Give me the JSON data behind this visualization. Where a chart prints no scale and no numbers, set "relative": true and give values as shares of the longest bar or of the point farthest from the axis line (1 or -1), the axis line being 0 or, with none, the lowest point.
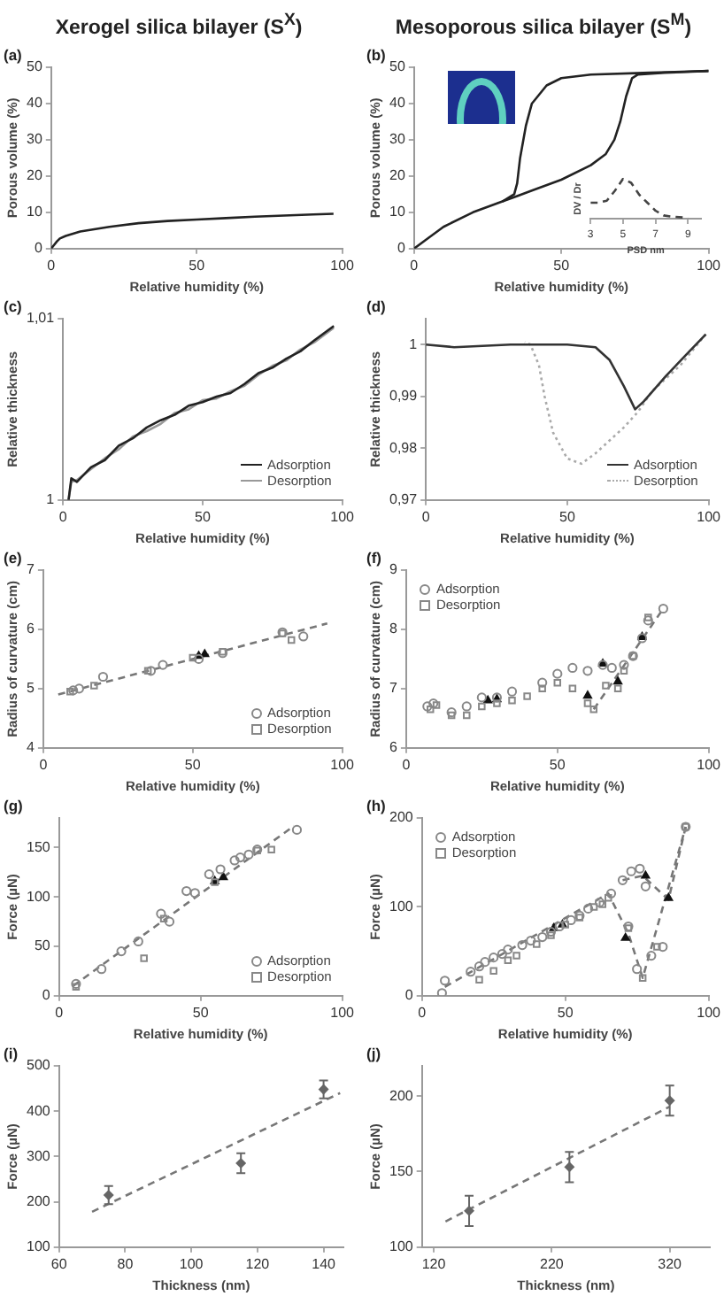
{
  "chart_data": [
    {
      "type": "line",
      "title": "Xerogel silica bilayer (S$^{X}$)",
      "annotations": [
        "(a)"
      ],
      "xlabel": "Relative humidity (%)",
      "ylabel": "Porous volume (%)",
      "xlim": [
        0,
        100
      ],
      "xticks": [
        0,
        50,
        100
      ],
      "ylim": [
        0,
        50
      ],
      "yticks": [
        0,
        10,
        20,
        30,
        40,
        50
      ],
      "series": [
        {
          "color": "#222222",
          "x": [
            0,
            1,
            2,
            3,
            5,
            10,
            20,
            30,
            40,
            50,
            60,
            70,
            80,
            90,
            97
          ],
          "values": [
            0,
            1,
            2,
            2.8,
            3.5,
            4.7,
            6,
            7,
            7.6,
            8,
            8.4,
            8.8,
            9.1,
            9.4,
            9.6
          ]
        }
      ]
    },
    {
      "type": "line",
      "title": "Mesoporous silica bilayer (S$^{M}$)",
      "annotations": [
        "(b)"
      ],
      "xlabel": "Relative humidity (%)",
      "ylabel": "Porous volume (%)",
      "xlim": [
        0,
        100
      ],
      "xticks": [
        0,
        50,
        100
      ],
      "ylim": [
        0,
        50
      ],
      "yticks": [
        0,
        10,
        20,
        30,
        40,
        50
      ],
      "series": [
        {
          "color": "#222222",
          "x": [
            0,
            5,
            10,
            20,
            30,
            35,
            40,
            50,
            60,
            65,
            68,
            70,
            72,
            74,
            76,
            85,
            100
          ],
          "values": [
            0,
            3,
            6,
            10,
            13,
            14.5,
            16,
            19,
            23,
            26,
            30,
            35,
            42,
            47,
            48,
            48.5,
            49
          ]
        },
        {
          "color": "#222222",
          "x": [
            100,
            80,
            60,
            50,
            45,
            40,
            38,
            36,
            35,
            34,
            30
          ],
          "values": [
            49,
            48.5,
            48,
            47,
            45,
            40,
            34,
            25,
            18,
            15,
            13
          ]
        }
      ]
    },
    {
      "type": "line",
      "relative": true,
      "tick_labels": "x",
      "xlabel": "PSD nm",
      "ylabel": "DV / Dr",
      "xlim": [
        3,
        9.8
      ],
      "xticks": [
        3,
        5,
        7,
        9
      ],
      "series": [
        {
          "color": "#444444",
          "line_style": "dashed",
          "x": [
            3,
            3.5,
            4,
            4.5,
            5,
            5.5,
            6,
            6.5,
            7,
            7.5,
            8,
            9
          ],
          "values": [
            0.4,
            0.4,
            0.45,
            0.7,
            1,
            0.9,
            0.6,
            0.4,
            0.2,
            0.08,
            0.05,
            0.02
          ]
        }
      ]
    },
    {
      "type": "line",
      "annotations": [
        "(c)"
      ],
      "xlabel": "Relative humidity (%)",
      "ylabel": "Relative thickness",
      "xlim": [
        0,
        100
      ],
      "xticks": [
        0,
        50,
        100
      ],
      "ylim": [
        1,
        1.01
      ],
      "yticks": [
        1,
        {
          "value": 1.01,
          "label": "1,01"
        }
      ],
      "legend": "bottom right",
      "series": [
        {
          "name": "Adsorption",
          "color": "#222222",
          "x": [
            2,
            3,
            5,
            10,
            15,
            20,
            25,
            30,
            35,
            40,
            45,
            50,
            55,
            60,
            65,
            70,
            75,
            80,
            85,
            90,
            97
          ],
          "values": [
            1,
            1.0012,
            1.001,
            1.0018,
            1.0022,
            1.003,
            1.0034,
            1.004,
            1.0044,
            1.0047,
            1.0052,
            1.0054,
            1.0057,
            1.0059,
            1.0064,
            1.007,
            1.0073,
            1.0078,
            1.0082,
            1.0088,
            1.0096
          ]
        },
        {
          "name": "Desorption",
          "color": "#999999",
          "x": [
            2,
            3,
            5,
            10,
            15,
            20,
            25,
            30,
            35,
            40,
            45,
            50,
            55,
            60,
            65,
            70,
            75,
            80,
            85,
            90,
            97
          ],
          "values": [
            1,
            1.001,
            1.0011,
            1.0017,
            1.0023,
            1.0028,
            1.0035,
            1.0038,
            1.0042,
            1.0048,
            1.005,
            1.0055,
            1.0056,
            1.006,
            1.0063,
            1.0069,
            1.0074,
            1.0077,
            1.0083,
            1.0087,
            1.0095
          ]
        }
      ]
    },
    {
      "type": "line",
      "annotations": [
        "(d)"
      ],
      "xlabel": "Relative humidity (%)",
      "ylabel": "Relative thickness",
      "xlim": [
        0,
        100
      ],
      "xticks": [
        0,
        50,
        100
      ],
      "ylim": [
        0.97,
        1.005
      ],
      "yticks": [
        {
          "value": 0.97,
          "label": "0,97"
        },
        {
          "value": 0.98,
          "label": "0,98"
        },
        {
          "value": 0.99,
          "label": "0,99"
        },
        1
      ],
      "legend": "bottom right",
      "series": [
        {
          "name": "Adsorption",
          "color": "#333333",
          "x": [
            0,
            10,
            30,
            50,
            60,
            65,
            70,
            74,
            77,
            85,
            92,
            99
          ],
          "values": [
            1,
            0.9995,
            1,
            1,
            0.9995,
            0.997,
            0.992,
            0.9875,
            0.989,
            0.994,
            0.998,
            1.002
          ]
        },
        {
          "name": "Desorption",
          "color": "#aaaaaa",
          "line_style": "dotted",
          "x": [
            99,
            90,
            80,
            75,
            70,
            60,
            55,
            50,
            45,
            42,
            40,
            37,
            35
          ],
          "values": [
            1.002,
            0.996,
            0.991,
            0.987,
            0.984,
            0.979,
            0.977,
            0.978,
            0.983,
            0.99,
            0.996,
            1,
            1.0005
          ]
        }
      ]
    },
    {
      "type": "scatter",
      "annotations": [
        "(e)"
      ],
      "xlabel": "Relative humidity (%)",
      "ylabel": "Radius of curvature (cm)",
      "xlim": [
        0,
        100
      ],
      "xticks": [
        0,
        50,
        100
      ],
      "ylim": [
        4,
        7
      ],
      "yticks": [
        4,
        5,
        6,
        7
      ],
      "legend": "bottom right",
      "series": [
        {
          "name": "Adsorption",
          "color": "#888888",
          "marker": "circle",
          "x": [
            10,
            12,
            20,
            36,
            40,
            52,
            60,
            80,
            87
          ],
          "values": [
            4.97,
            5,
            5.2,
            5.3,
            5.4,
            5.5,
            5.6,
            5.95,
            5.88
          ]
        },
        {
          "name": "Desorption",
          "color": "#888888",
          "marker": "square",
          "x": [
            9,
            17,
            35,
            50,
            60,
            80,
            83
          ],
          "values": [
            4.95,
            5.05,
            5.3,
            5.52,
            5.62,
            5.93,
            5.82
          ]
        },
        {
          "type": "scatter",
          "color": "#111111",
          "marker": "triangle",
          "x": [
            52,
            54
          ],
          "values": [
            5.55,
            5.58
          ]
        },
        {
          "type": "line",
          "color": "#777777",
          "line_style": "dashed",
          "x": [
            5,
            95
          ],
          "values": [
            4.9,
            6.1
          ]
        }
      ]
    },
    {
      "type": "scatter",
      "annotations": [
        "(f)"
      ],
      "xlabel": "Relative humidity (%)",
      "ylabel": "Radius of curvature (cm)",
      "xlim": [
        0,
        100
      ],
      "xticks": [
        0,
        50,
        100
      ],
      "ylim": [
        6,
        9
      ],
      "yticks": [
        6,
        7,
        8,
        9
      ],
      "legend": "top left",
      "series": [
        {
          "name": "Adsorption",
          "color": "#888888",
          "marker": "circle",
          "x": [
            7,
            9,
            15,
            20,
            25,
            30,
            35,
            45,
            50,
            55,
            60,
            65,
            68,
            72,
            75,
            78,
            80,
            85
          ],
          "values": [
            6.7,
            6.75,
            6.6,
            6.7,
            6.85,
            6.85,
            6.95,
            7.1,
            7.25,
            7.35,
            7.3,
            7.4,
            7.35,
            7.4,
            7.55,
            7.85,
            8.15,
            8.35
          ]
        },
        {
          "name": "Desorption",
          "color": "#888888",
          "marker": "square",
          "x": [
            8,
            10,
            15,
            20,
            25,
            30,
            35,
            40,
            45,
            50,
            55,
            60,
            62,
            66,
            70,
            72,
            75,
            80
          ],
          "values": [
            6.65,
            6.72,
            6.55,
            6.55,
            6.7,
            6.75,
            6.8,
            6.87,
            7,
            7.1,
            7,
            6.75,
            6.65,
            7.05,
            7,
            7.3,
            7.55,
            8.2
          ]
        },
        {
          "type": "scatter",
          "color": "#111111",
          "marker": "triangle",
          "x": [
            27,
            30,
            60,
            65,
            70,
            78
          ],
          "values": [
            6.8,
            6.82,
            6.88,
            7.42,
            7.12,
            7.87
          ]
        },
        {
          "type": "line",
          "color": "#777777",
          "line_style": "dashed",
          "x": [
            62,
            85
          ],
          "values": [
            6.65,
            8.35
          ]
        }
      ]
    },
    {
      "type": "scatter",
      "annotations": [
        "(g)"
      ],
      "xlabel": "Relative humidity (%)",
      "ylabel": "Force (µN)",
      "xlim": [
        0,
        100
      ],
      "xticks": [
        0,
        50,
        100
      ],
      "ylim": [
        0,
        180
      ],
      "yticks": [
        0,
        50,
        100,
        150
      ],
      "legend": "bottom right",
      "series": [
        {
          "name": "Adsorption",
          "color": "#888888",
          "marker": "circle",
          "x": [
            6,
            15,
            22,
            28,
            36,
            39,
            45,
            48,
            53,
            57,
            62,
            64,
            67,
            70,
            84
          ],
          "values": [
            12,
            27,
            45,
            55,
            83,
            75,
            106,
            104,
            123,
            128,
            137,
            140,
            143,
            148,
            168
          ]
        },
        {
          "name": "Desorption",
          "color": "#888888",
          "marker": "square",
          "x": [
            6,
            30,
            37,
            55,
            70,
            75
          ],
          "values": [
            9,
            38,
            78,
            115,
            147,
            148
          ]
        },
        {
          "type": "scatter",
          "color": "#111111",
          "marker": "triangle",
          "x": [
            55,
            58
          ],
          "values": [
            116,
            120
          ]
        },
        {
          "type": "line",
          "color": "#777777",
          "line_style": "dashed",
          "x": [
            5,
            83
          ],
          "values": [
            10,
            172
          ]
        }
      ]
    },
    {
      "type": "scatter",
      "annotations": [
        "(h)"
      ],
      "xlabel": "Relative humidity (%)",
      "ylabel": "Force (µN)",
      "xlim": [
        0,
        100
      ],
      "xticks": [
        0,
        50,
        100
      ],
      "ylim": [
        0,
        200
      ],
      "yticks": [
        0,
        100,
        200
      ],
      "legend": "top left",
      "series": [
        {
          "name": "Adsorption",
          "color": "#888888",
          "marker": "circle",
          "x": [
            7,
            8,
            17,
            20,
            22,
            25,
            28,
            30,
            35,
            38,
            42,
            45,
            48,
            52,
            55,
            58,
            62,
            66,
            70,
            73,
            76,
            78,
            72,
            75,
            80,
            84,
            92
          ],
          "values": [
            3,
            17,
            27,
            33,
            38,
            43,
            47,
            52,
            57,
            62,
            66,
            72,
            78,
            85,
            90,
            98,
            105,
            115,
            130,
            140,
            143,
            123,
            78,
            30,
            45,
            55,
            190
          ]
        },
        {
          "name": "Desorption",
          "color": "#888888",
          "marker": "square",
          "x": [
            20,
            25,
            30,
            33,
            40,
            45,
            50,
            55,
            60,
            63,
            65,
            72,
            77,
            82,
            92
          ],
          "values": [
            18,
            28,
            40,
            45,
            58,
            68,
            80,
            88,
            100,
            103,
            110,
            76,
            20,
            55,
            190
          ]
        },
        {
          "type": "scatter",
          "color": "#111111",
          "marker": "triangle",
          "x": [
            46,
            49,
            71,
            78,
            86
          ],
          "values": [
            76,
            80,
            65,
            135,
            110
          ]
        },
        {
          "type": "line",
          "color": "#777777",
          "line_style": "dashed",
          "x": [
            8,
            65,
            72,
            77,
            92
          ],
          "values": [
            10,
            115,
            70,
            20,
            190
          ]
        },
        {
          "type": "line",
          "color": "#777777",
          "line_style": "dashed",
          "x": [
            70,
            77,
            86,
            92
          ],
          "values": [
            130,
            135,
            108,
            190
          ]
        }
      ]
    },
    {
      "type": "scatter",
      "annotations": [
        "(i)"
      ],
      "xlabel": "Thickness (nm)",
      "ylabel": "Force (µN)",
      "xlim": [
        60,
        146
      ],
      "xticks": [
        60,
        80,
        100,
        120,
        140
      ],
      "ylim": [
        100,
        500
      ],
      "yticks": [
        100,
        200,
        300,
        400,
        500
      ],
      "series": [
        {
          "color": "#666666",
          "marker": "diamond",
          "x": [
            75,
            115,
            140
          ],
          "values": [
            215,
            285,
            448
          ],
          "errors": [
            20,
            22,
            20
          ]
        },
        {
          "type": "line",
          "color": "#777777",
          "line_style": "dashed",
          "x": [
            70,
            145
          ],
          "values": [
            178,
            440
          ]
        }
      ]
    },
    {
      "type": "scatter",
      "annotations": [
        "(j)"
      ],
      "xlabel": "Thickness (nm)",
      "ylabel": "Force (µN)",
      "xlim": [
        110,
        354
      ],
      "xticks": [
        120,
        220,
        320
      ],
      "ylim": [
        100,
        220
      ],
      "yticks": [
        100,
        150,
        200
      ],
      "series": [
        {
          "color": "#666666",
          "marker": "diamond",
          "x": [
            150,
            235,
            320
          ],
          "values": [
            124,
            153,
            197
          ],
          "errors": [
            10,
            10,
            10
          ]
        },
        {
          "type": "line",
          "color": "#777777",
          "line_style": "dashed",
          "x": [
            130,
            320
          ],
          "values": [
            117,
            193
          ]
        }
      ]
    }
  ]
}
